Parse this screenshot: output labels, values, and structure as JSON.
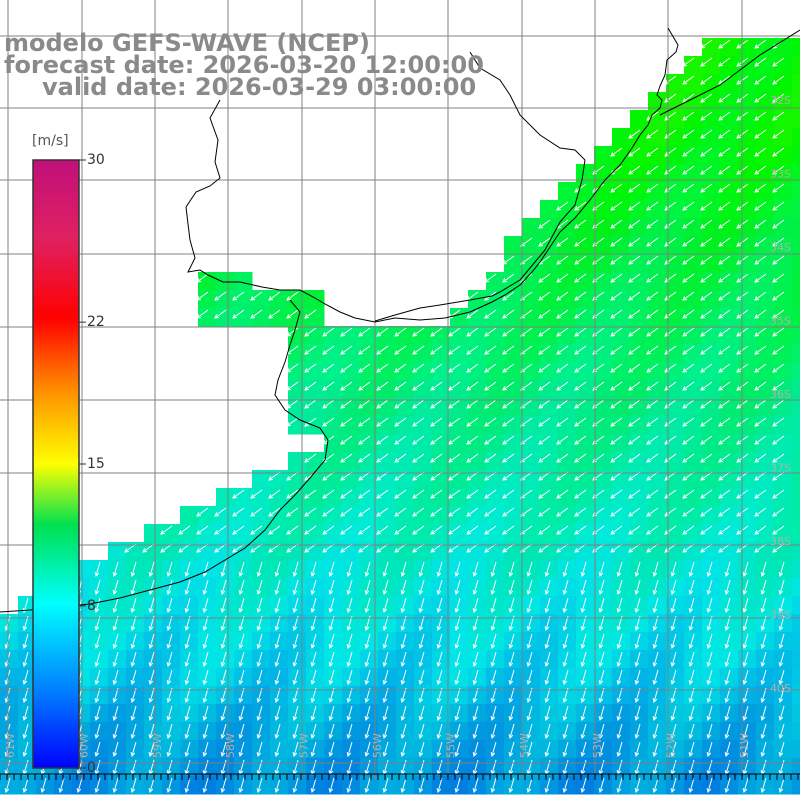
{
  "header": {
    "line1": "modelo GEFS-WAVE (NCEP)",
    "line2": "forecast date: 2026-03-20 12:00:00",
    "line3": "valid date: 2026-03-29 03:00:00"
  },
  "colorbar": {
    "unit": "[m/s]",
    "min": 0,
    "max": 30,
    "ticks": [
      "0",
      "8",
      "15",
      "22",
      "30"
    ],
    "tick_values": [
      0,
      8,
      15,
      22,
      30
    ]
  },
  "map": {
    "lon_labels": [
      "61W",
      "60W",
      "59W",
      "58W",
      "57W",
      "56W",
      "55W",
      "54W",
      "53W",
      "52W",
      "51W"
    ],
    "lat_labels": [
      "32S",
      "33S",
      "34S",
      "35S",
      "36S",
      "37S",
      "38S",
      "39S",
      "40S"
    ],
    "wind_direction": "from the north-east",
    "colors": {
      "land": "#ffffff",
      "coast": "#000000",
      "grid": "#808080",
      "arrows": "#ffffff"
    }
  }
}
